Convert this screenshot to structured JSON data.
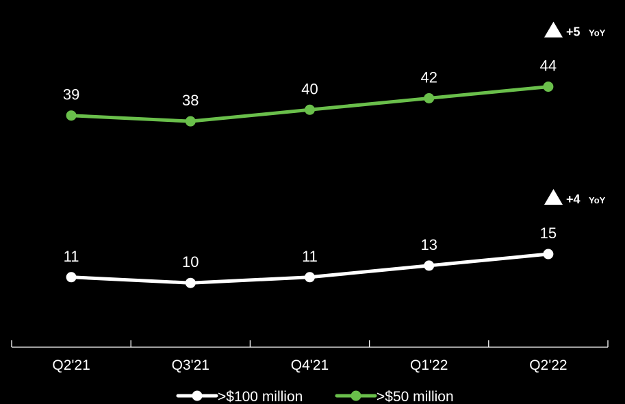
{
  "chart_data": {
    "type": "line",
    "categories": [
      "Q2'21",
      "Q3'21",
      "Q4'21",
      "Q1'22",
      "Q2'22"
    ],
    "series": [
      {
        "name": ">$100 million",
        "values": [
          11,
          10,
          11,
          13,
          15
        ],
        "color": "#ffffff",
        "yoy": {
          "value": "+4",
          "unit": "YoY"
        }
      },
      {
        "name": ">$50 million",
        "values": [
          39,
          38,
          40,
          42,
          44
        ],
        "color": "#6abf4b",
        "yoy": {
          "value": "+5",
          "unit": "YoY"
        }
      }
    ],
    "title": "",
    "xlabel": "",
    "ylabel": "",
    "y_axis_visible": false,
    "grid": false,
    "legend_position": "bottom",
    "data_labels": true
  },
  "colors": {
    "background": "#000000",
    "axis": "#ffffff",
    "text": "#ffffff"
  }
}
